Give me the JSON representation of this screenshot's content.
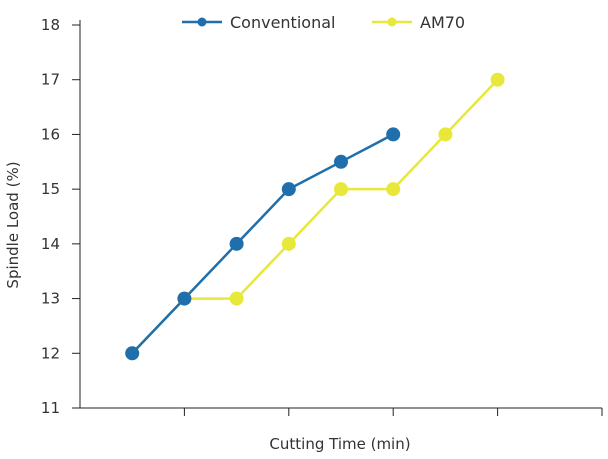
{
  "chart_data": {
    "type": "line",
    "xlabel": "Cutting Time (min)",
    "ylabel": "Spindle Load (%)",
    "ylim": [
      11,
      18
    ],
    "y_ticks": [
      11,
      12,
      13,
      14,
      15,
      16,
      17,
      18
    ],
    "x_positions": [
      1,
      2,
      3,
      4,
      5,
      6
    ],
    "xlim": [
      0,
      5
    ],
    "grid": false,
    "legend_position": "top-center",
    "series": [
      {
        "name": "Conventional",
        "color": "#1f6fad",
        "x": [
          0.5,
          1,
          1.5,
          2,
          2.5,
          3
        ],
        "values": [
          12,
          13,
          14,
          15,
          15.5,
          16
        ]
      },
      {
        "name": "AM70",
        "color": "#e8e83a",
        "x": [
          0.5,
          1,
          1.5,
          2,
          2.5,
          3,
          3.5,
          4
        ],
        "values": [
          12,
          13,
          13,
          14,
          15,
          15,
          16,
          17
        ]
      }
    ]
  }
}
